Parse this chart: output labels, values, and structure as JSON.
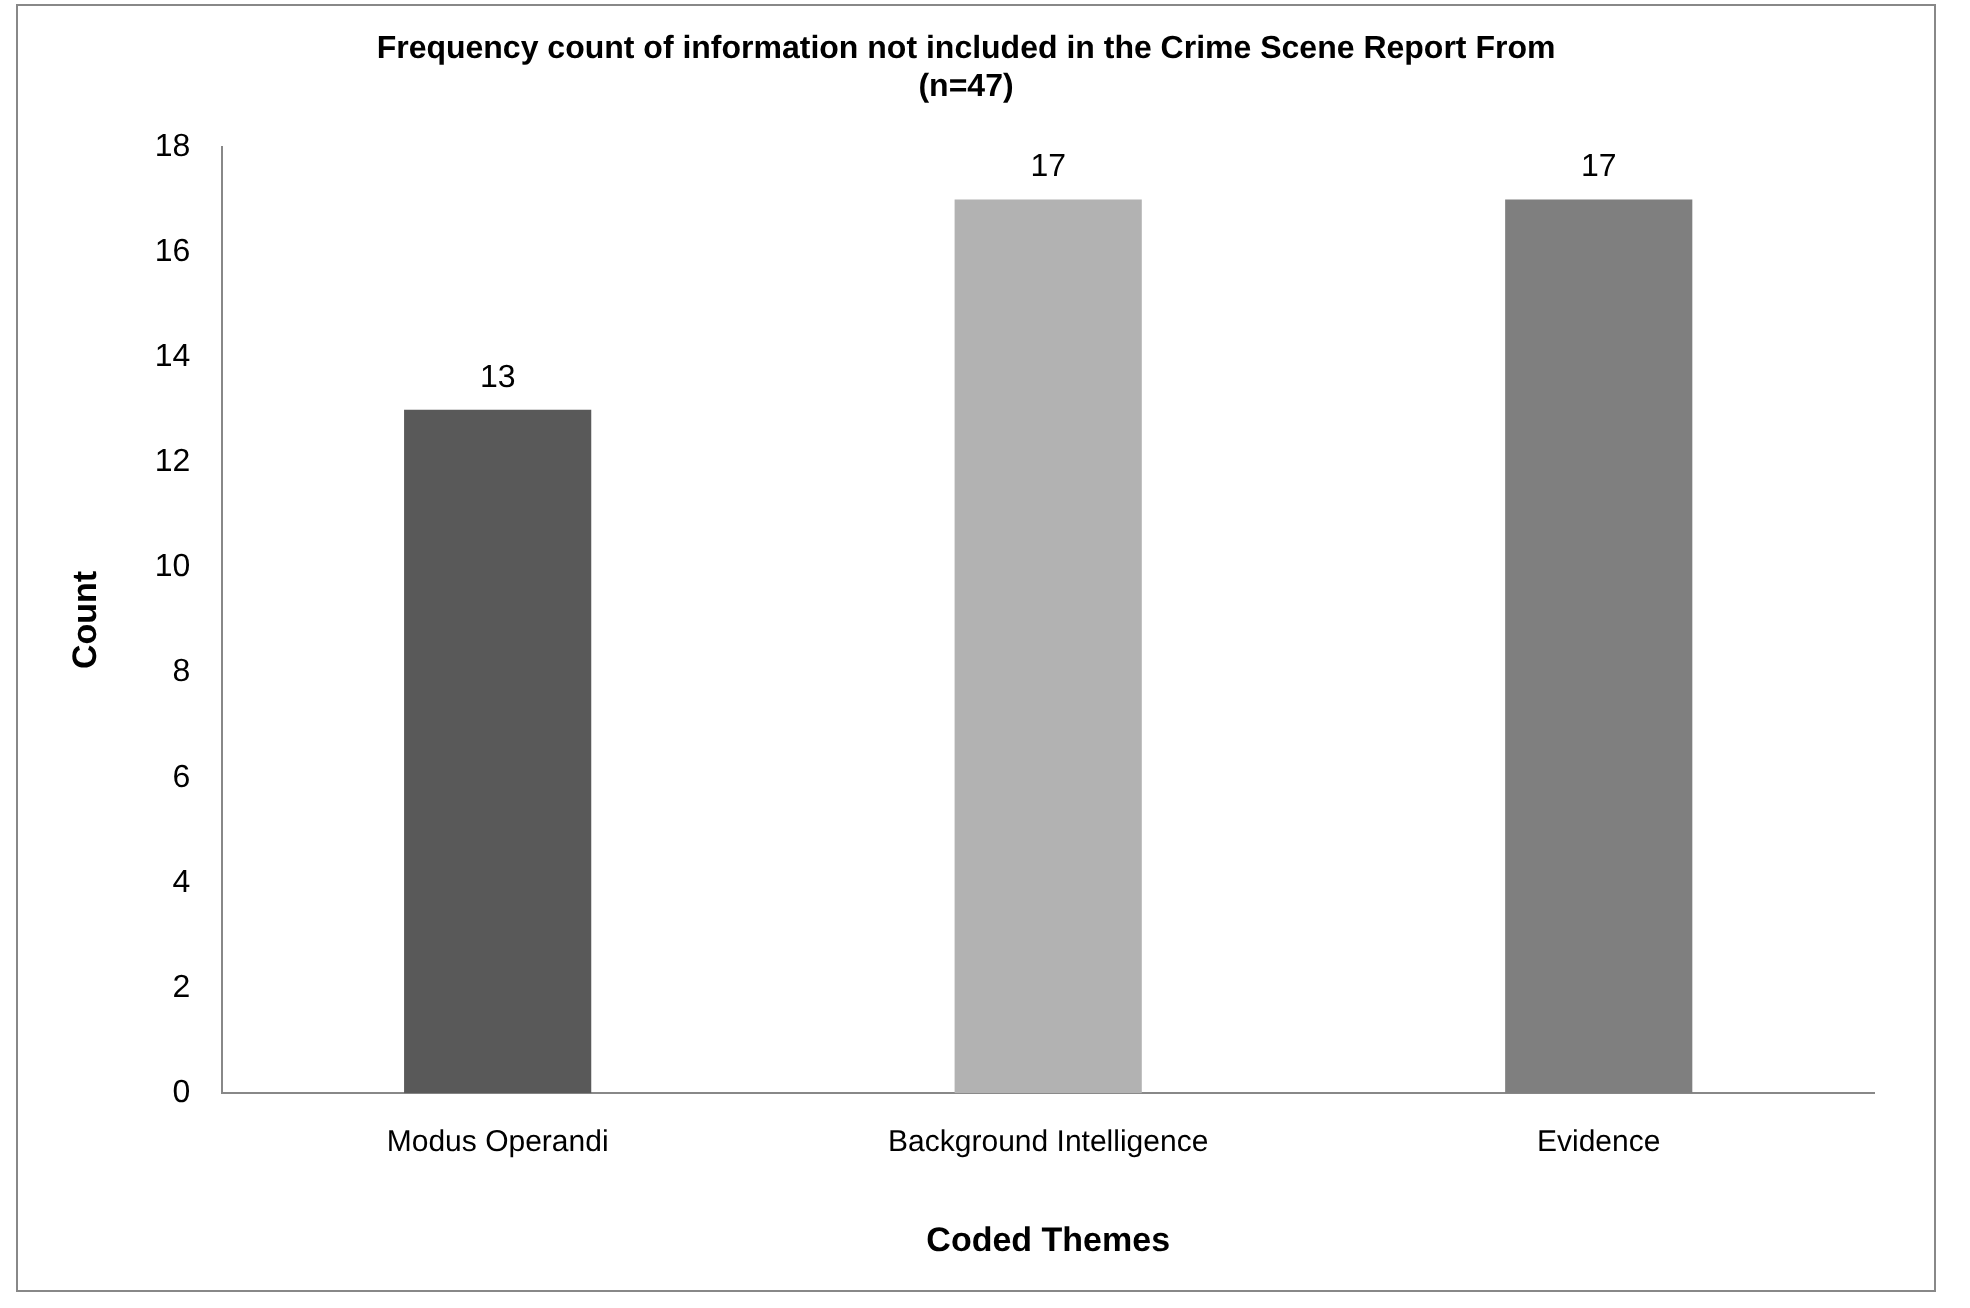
{
  "chart_data": {
    "type": "bar",
    "title": "Frequency count of information not included in the Crime Scene Report From (n=47)",
    "xlabel": "Coded Themes",
    "ylabel": "Count",
    "categories": [
      "Modus Operandi",
      "Background Intelligence",
      "Evidence"
    ],
    "values": [
      13,
      17,
      17
    ],
    "colors": [
      "#595959",
      "#b2b2b2",
      "#7f7f7f"
    ],
    "ylim": [
      0,
      18
    ],
    "yticks": [
      0,
      2,
      4,
      6,
      8,
      10,
      12,
      14,
      16,
      18
    ],
    "grid": false,
    "legend": false,
    "data_labels": true
  }
}
